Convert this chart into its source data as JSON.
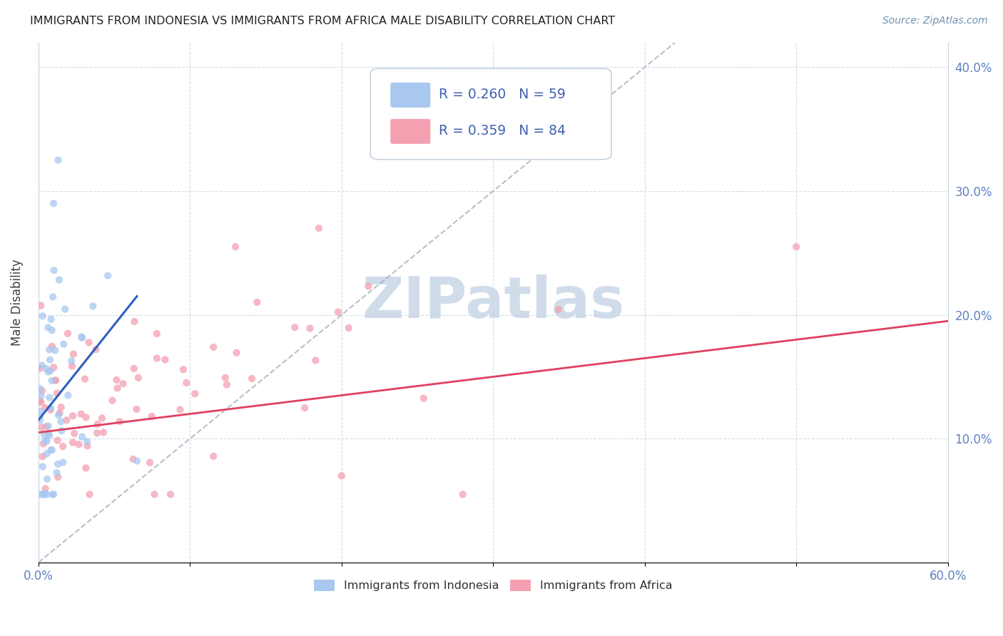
{
  "title": "IMMIGRANTS FROM INDONESIA VS IMMIGRANTS FROM AFRICA MALE DISABILITY CORRELATION CHART",
  "source": "Source: ZipAtlas.com",
  "ylabel": "Male Disability",
  "xlim": [
    0.0,
    0.6
  ],
  "ylim": [
    0.0,
    0.42
  ],
  "x_ticks": [
    0.0,
    0.1,
    0.2,
    0.3,
    0.4,
    0.5,
    0.6
  ],
  "x_tick_labels_show": {
    "0.0": "0.0%",
    "0.6": "60.0%"
  },
  "y_ticks": [
    0.0,
    0.1,
    0.2,
    0.3,
    0.4
  ],
  "y_tick_labels": [
    "",
    "10.0%",
    "20.0%",
    "30.0%",
    "40.0%"
  ],
  "indonesia_color": "#a8c8f0",
  "africa_color": "#f4a0b0",
  "indonesia_line_color": "#3060c0",
  "africa_line_color": "#e04060",
  "diagonal_color": "#b0b8c8",
  "legend_box_color": "#e8eef8",
  "legend_text_color": "#4060b0",
  "tick_color": "#6080c0",
  "watermark": "ZIPatlas",
  "watermark_color": "#d0dcea",
  "indo_R": 0.26,
  "indo_N": 59,
  "africa_R": 0.359,
  "africa_N": 84,
  "indo_line_x0": 0.0,
  "indo_line_y0": 0.115,
  "indo_line_x1": 0.065,
  "indo_line_y1": 0.215,
  "africa_line_x0": 0.0,
  "africa_line_y0": 0.105,
  "africa_line_x1": 0.6,
  "africa_line_y1": 0.195
}
